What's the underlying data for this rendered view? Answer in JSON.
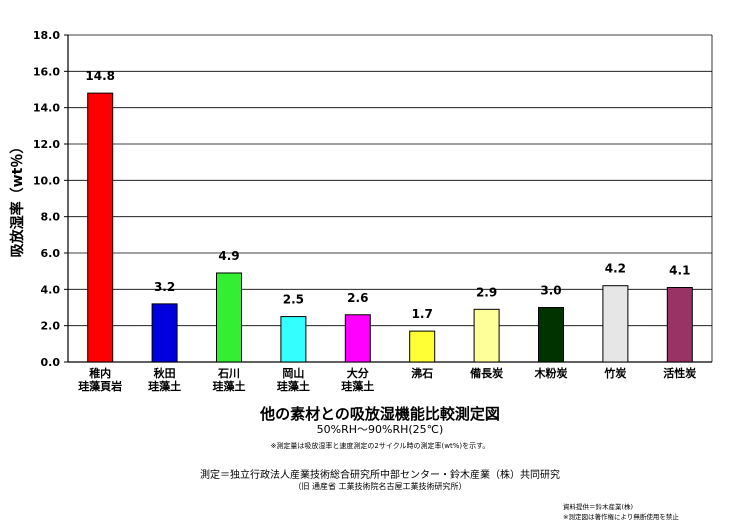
{
  "chart_data": {
    "type": "bar",
    "categories": [
      [
        "稚内",
        "珪藻頁岩"
      ],
      [
        "秋田",
        "珪藻土"
      ],
      [
        "石川",
        "珪藻土"
      ],
      [
        "岡山",
        "珪藻土"
      ],
      [
        "大分",
        "珪藻土"
      ],
      [
        "沸石"
      ],
      [
        "備長炭"
      ],
      [
        "木粉炭"
      ],
      [
        "竹炭"
      ],
      [
        "活性炭"
      ]
    ],
    "values": [
      14.8,
      3.2,
      4.9,
      2.5,
      2.6,
      1.7,
      2.9,
      3.0,
      4.2,
      4.1
    ],
    "data_labels": [
      "14.8",
      "3.2",
      "4.9",
      "2.5",
      "2.6",
      "1.7",
      "2.9",
      "3.0",
      "4.2",
      "4.1"
    ],
    "colors": [
      "#ff0000",
      "#0000dd",
      "#33ee33",
      "#33ffff",
      "#ff00ff",
      "#ffff33",
      "#ffff99",
      "#003300",
      "#e6e6e6",
      "#993366"
    ],
    "ylabel": "吸放湿率（wt％）",
    "ylim": [
      0,
      18
    ],
    "yticks": [
      "0.0",
      "2.0",
      "4.0",
      "6.0",
      "8.0",
      "10.0",
      "12.0",
      "14.0",
      "16.0",
      "18.0"
    ],
    "grid": true
  },
  "captions": {
    "title": "他の素材との吸放湿機能比較測定図",
    "subtitle": "50%RH～90%RH(25℃)",
    "note": "※測定量は吸放湿率と速度測定の2サイクル時の測定率(wt%)を示す。",
    "credit": "測定＝独立行政法人産業技術総合研究所中部センター・鈴木産業（株）共同研究",
    "credit2": "（旧 通産省 工業技術院名古屋工業技術研究所）",
    "source1": "資料提供＝鈴木産業(株)",
    "source2": "※測定図は著作権により無断使用を禁止"
  }
}
